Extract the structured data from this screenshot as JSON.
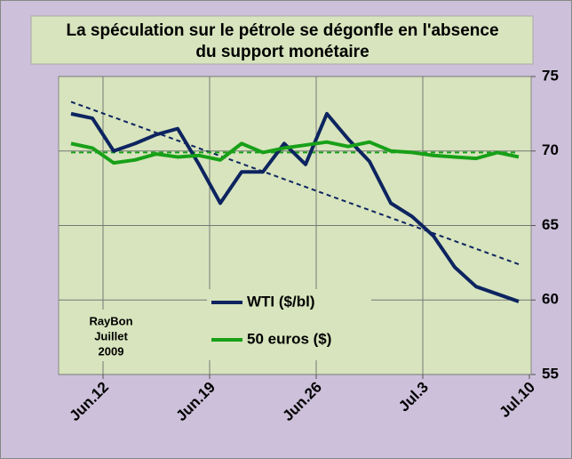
{
  "chart_data": {
    "type": "line",
    "title_lines": [
      "La spéculation sur le pétrole se dégonfle en l'absence",
      "du support monétaire"
    ],
    "categories": [
      null,
      "Jun.12",
      null,
      null,
      null,
      null,
      "Jun.19",
      null,
      null,
      null,
      null,
      "Jun.26",
      null,
      null,
      null,
      null,
      "Jul.3",
      null,
      null,
      null,
      null,
      "Jul.10"
    ],
    "series": [
      {
        "name": "WTI ($/bl)",
        "color": "#0d2460",
        "values": [
          72.5,
          72.2,
          70.0,
          70.5,
          71.1,
          71.5,
          69.1,
          66.5,
          68.6,
          68.6,
          70.5,
          69.1,
          72.5,
          70.8,
          69.3,
          66.5,
          65.6,
          64.3,
          62.2,
          60.9,
          60.4,
          59.9
        ]
      },
      {
        "name": "50 euros ($)",
        "color": "#18a018",
        "values": [
          70.5,
          70.2,
          69.2,
          69.4,
          69.8,
          69.6,
          69.7,
          69.4,
          70.5,
          69.9,
          70.2,
          70.4,
          70.6,
          70.3,
          70.6,
          70.0,
          69.9,
          69.7,
          69.6,
          69.5,
          69.9,
          69.6
        ]
      }
    ],
    "trendlines": [
      {
        "color": "#0d2460",
        "start": 73.3,
        "end": 62.4
      },
      {
        "color": "#18a018",
        "start": 69.9,
        "end": 69.9
      }
    ],
    "ylim": [
      55,
      75
    ],
    "yticks": [
      55,
      60,
      65,
      70,
      75
    ],
    "y_axis_side": "right",
    "grid": true,
    "annotation_lines": [
      "RayBon",
      "Juillet",
      "2009"
    ]
  }
}
